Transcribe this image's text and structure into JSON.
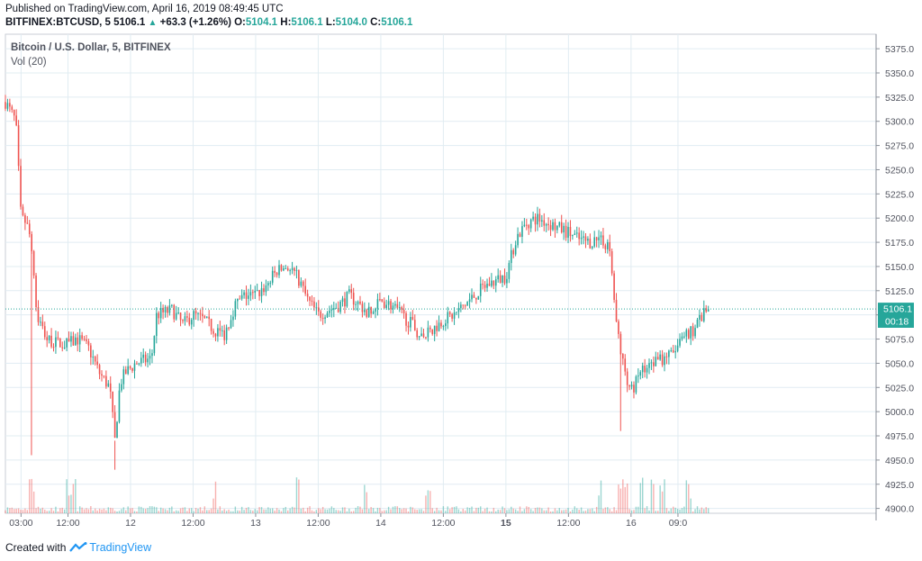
{
  "header": {
    "published": "Published on TradingView.com, April 16, 2019 08:49:45 UTC",
    "symbol": "BITFINEX:BTCUSD, 5",
    "last": "5106.1",
    "change": "+63.3 (+1.26%)",
    "o_label": "O:",
    "o_value": "5104.1",
    "h_label": "H:",
    "h_value": "5106.1",
    "l_label": "L:",
    "l_value": "5104.0",
    "c_label": "C:",
    "c_value": "5106.1"
  },
  "legend": {
    "title": "Bitcoin / U.S. Dollar, 5, BITFINEX",
    "volume": "Vol (20)"
  },
  "price_label": {
    "value": "5106.1",
    "countdown": "00:18"
  },
  "footer": {
    "created_with": "Created with",
    "brand": "TradingView"
  },
  "colors": {
    "up": "#26a69a",
    "down": "#ef5350",
    "last_price": "#26a69a",
    "grid": "#e1ecf2"
  },
  "chart_data": {
    "type": "candlestick",
    "interval": "5 min",
    "y_ticks": [
      "5375.0",
      "5350.0",
      "5325.0",
      "5300.0",
      "5275.0",
      "5250.0",
      "5225.0",
      "5200.0",
      "5175.0",
      "5150.0",
      "5125.0",
      "5100.0",
      "5075.0",
      "5050.0",
      "5025.0",
      "5000.0",
      "4975.0",
      "4950.0",
      "4925.0",
      "4900.0"
    ],
    "ylim": [
      4895,
      5390
    ],
    "x_ticks": [
      "03:00",
      "12:00",
      "12",
      "12:00",
      "13",
      "12:00",
      "14",
      "12:00",
      "15",
      "12:00",
      "16",
      "09:0"
    ],
    "x_ticks_bold": [
      false,
      false,
      false,
      false,
      false,
      false,
      false,
      false,
      true,
      false,
      false,
      false
    ],
    "x_range_hours": [
      0,
      167
    ],
    "x_tick_hours": [
      3,
      12,
      24,
      36,
      48,
      60,
      72,
      84,
      96,
      108,
      120,
      129
    ],
    "last_price": 5106.1,
    "grid": true,
    "path_anchors": [
      [
        0,
        5320
      ],
      [
        1,
        5310
      ],
      [
        2,
        5300
      ],
      [
        3,
        5200
      ],
      [
        4,
        5195
      ],
      [
        5,
        5175
      ],
      [
        6,
        5100
      ],
      [
        8,
        5075
      ],
      [
        10,
        5070
      ],
      [
        12,
        5070
      ],
      [
        14,
        5075
      ],
      [
        16,
        5065
      ],
      [
        18,
        5040
      ],
      [
        20,
        5025
      ],
      [
        21,
        4970
      ],
      [
        22,
        5030
      ],
      [
        23,
        5040
      ],
      [
        25,
        5050
      ],
      [
        28,
        5055
      ],
      [
        29,
        5100
      ],
      [
        32,
        5105
      ],
      [
        34,
        5090
      ],
      [
        36,
        5100
      ],
      [
        38,
        5095
      ],
      [
        40,
        5085
      ],
      [
        42,
        5080
      ],
      [
        44,
        5110
      ],
      [
        46,
        5120
      ],
      [
        48,
        5120
      ],
      [
        50,
        5130
      ],
      [
        52,
        5145
      ],
      [
        54,
        5150
      ],
      [
        56,
        5140
      ],
      [
        58,
        5115
      ],
      [
        60,
        5100
      ],
      [
        62,
        5105
      ],
      [
        64,
        5110
      ],
      [
        66,
        5120
      ],
      [
        68,
        5110
      ],
      [
        70,
        5100
      ],
      [
        72,
        5115
      ],
      [
        74,
        5110
      ],
      [
        76,
        5100
      ],
      [
        78,
        5090
      ],
      [
        80,
        5075
      ],
      [
        82,
        5085
      ],
      [
        84,
        5095
      ],
      [
        86,
        5100
      ],
      [
        88,
        5110
      ],
      [
        90,
        5120
      ],
      [
        92,
        5130
      ],
      [
        94,
        5135
      ],
      [
        96,
        5140
      ],
      [
        98,
        5180
      ],
      [
        100,
        5195
      ],
      [
        102,
        5200
      ],
      [
        104,
        5195
      ],
      [
        106,
        5190
      ],
      [
        108,
        5185
      ],
      [
        110,
        5178
      ],
      [
        112,
        5175
      ],
      [
        114,
        5180
      ],
      [
        115,
        5175
      ],
      [
        116,
        5165
      ],
      [
        117,
        5100
      ],
      [
        118,
        5060
      ],
      [
        119,
        5040
      ],
      [
        120,
        5020
      ],
      [
        121,
        5030
      ],
      [
        122,
        5045
      ],
      [
        124,
        5050
      ],
      [
        126,
        5055
      ],
      [
        128,
        5060
      ],
      [
        130,
        5075
      ],
      [
        132,
        5085
      ],
      [
        133,
        5095
      ],
      [
        134,
        5100
      ],
      [
        135,
        5106.1
      ]
    ],
    "volume_spikes_hours": [
      5,
      12,
      13,
      40,
      56,
      69,
      81,
      114,
      118,
      119,
      122,
      124,
      126,
      131
    ]
  }
}
